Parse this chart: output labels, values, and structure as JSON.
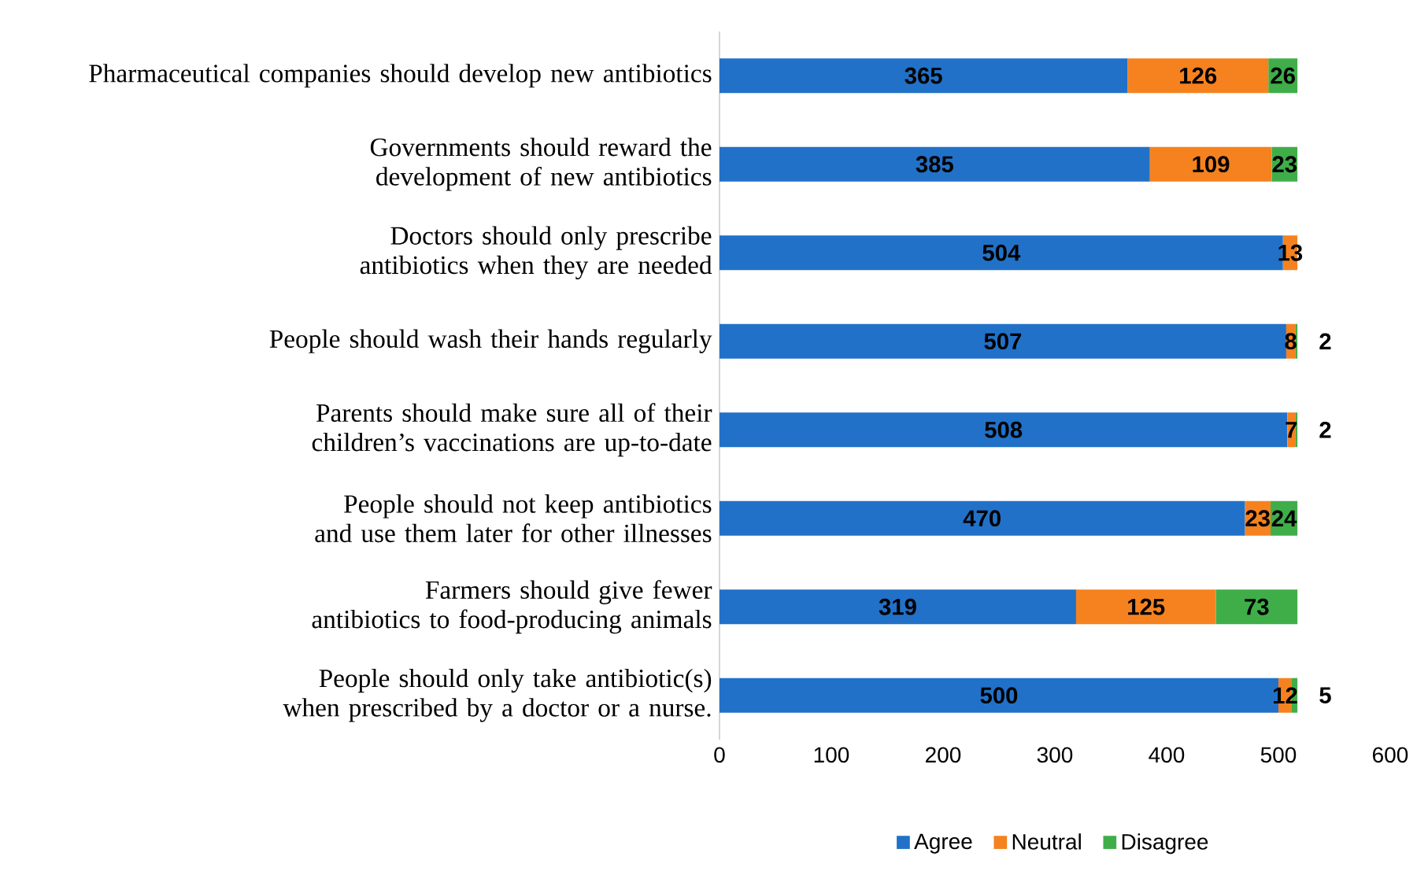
{
  "chart_data": {
    "type": "bar",
    "orientation": "horizontal",
    "stacked": true,
    "categories": [
      "Pharmaceutical companies should develop new antibiotics",
      "Governments should reward the development of new antibiotics",
      "Doctors should only prescribe antibiotics when they are needed",
      "People should wash their hands regularly",
      "Parents should make sure all of their children’s vaccinations are up-to-date",
      "People should not keep antibiotics and use them later for other illnesses",
      "Farmers should give fewer antibiotics to food-producing animals",
      "People should only take antibiotic(s) when prescribed by a doctor or a nurse."
    ],
    "series": [
      {
        "name": "Agree",
        "color": "#2271c8",
        "values": [
          365,
          385,
          504,
          507,
          508,
          470,
          319,
          500
        ],
        "value_labels": [
          "365",
          "385",
          "504",
          "507",
          "508",
          "470",
          "319",
          "500"
        ]
      },
      {
        "name": "Neutral",
        "color": "#f5821f",
        "values": [
          126,
          109,
          13,
          8,
          7,
          23,
          125,
          12
        ],
        "value_labels": [
          "126",
          "109",
          "13",
          "8",
          "7",
          "23",
          "125",
          "12"
        ]
      },
      {
        "name": "Disagree",
        "color": "#3fae49",
        "values": [
          26,
          23,
          0,
          2,
          2,
          24,
          73,
          5
        ],
        "value_labels": [
          "26",
          "23",
          null,
          "2",
          "2",
          "24",
          "73",
          "5"
        ]
      }
    ],
    "xlim": [
      0,
      600
    ],
    "xticks": [
      0,
      100,
      200,
      300,
      400,
      500,
      600
    ],
    "grid": false,
    "legend": "bottom"
  }
}
